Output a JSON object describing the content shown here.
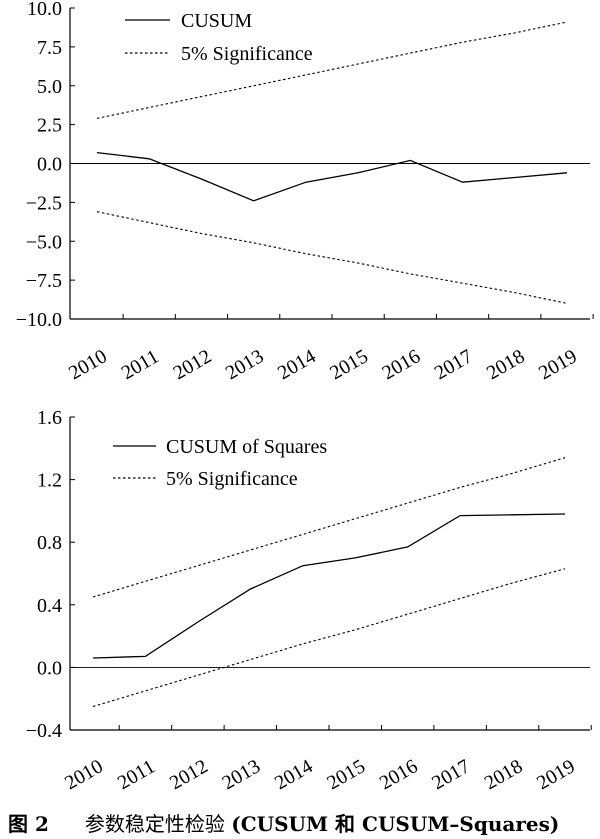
{
  "chart_data": [
    {
      "type": "line",
      "x": [
        "2010",
        "2011",
        "2012",
        "2013",
        "2014",
        "2015",
        "2016",
        "2017",
        "2018",
        "2019"
      ],
      "ylim": [
        -10.0,
        10.0
      ],
      "yticks": [
        "10.0",
        "7.5",
        "5.0",
        "2.5",
        "0.0",
        "-2.5",
        "-5.0",
        "-7.5",
        "-10.0"
      ],
      "reference_line": 0,
      "series": [
        {
          "name": "CUSUM",
          "style": "solid",
          "values": [
            0.7,
            0.3,
            -1.0,
            -2.4,
            -1.2,
            -0.6,
            0.2,
            -1.2,
            -0.9,
            -0.6
          ]
        },
        {
          "name": "5% Significance",
          "style": "dotted",
          "values": [
            2.9,
            3.6,
            4.3,
            5.0,
            5.7,
            6.4,
            7.1,
            7.8,
            8.4,
            9.1
          ]
        },
        {
          "name": "",
          "style": "dotted",
          "values": [
            -3.1,
            -3.8,
            -4.5,
            -5.1,
            -5.8,
            -6.4,
            -7.1,
            -7.7,
            -8.3,
            -9.0
          ]
        }
      ],
      "legend": {
        "position": "top-left",
        "entries": [
          "CUSUM",
          "5% Significance"
        ]
      }
    },
    {
      "type": "line",
      "x": [
        "2010",
        "2011",
        "2012",
        "2013",
        "2014",
        "2015",
        "2016",
        "2017",
        "2018",
        "2019"
      ],
      "ylim": [
        -0.4,
        1.6
      ],
      "yticks": [
        "1.6",
        "1.2",
        "0.8",
        "0.4",
        "0.0",
        "-0.4"
      ],
      "reference_line": 0,
      "series": [
        {
          "name": "CUSUM of Squares",
          "style": "solid",
          "values": [
            0.06,
            0.07,
            0.29,
            0.5,
            0.65,
            0.7,
            0.77,
            0.97,
            0.975,
            0.98
          ]
        },
        {
          "name": "5% Significance",
          "style": "dotted",
          "values": [
            0.45,
            0.55,
            0.65,
            0.75,
            0.85,
            0.95,
            1.05,
            1.15,
            1.24,
            1.34
          ]
        },
        {
          "name": "",
          "style": "dotted",
          "values": [
            -0.25,
            -0.15,
            -0.05,
            0.05,
            0.15,
            0.24,
            0.34,
            0.44,
            0.54,
            0.63
          ]
        }
      ],
      "legend": {
        "position": "top-left",
        "entries": [
          "CUSUM of Squares",
          "5% Significance"
        ]
      }
    }
  ],
  "caption": {
    "figure_label": "图 2",
    "title_cn": "参数稳定性检验",
    "title_paren": "(CUSUM 和 CUSUM–Squares)"
  }
}
